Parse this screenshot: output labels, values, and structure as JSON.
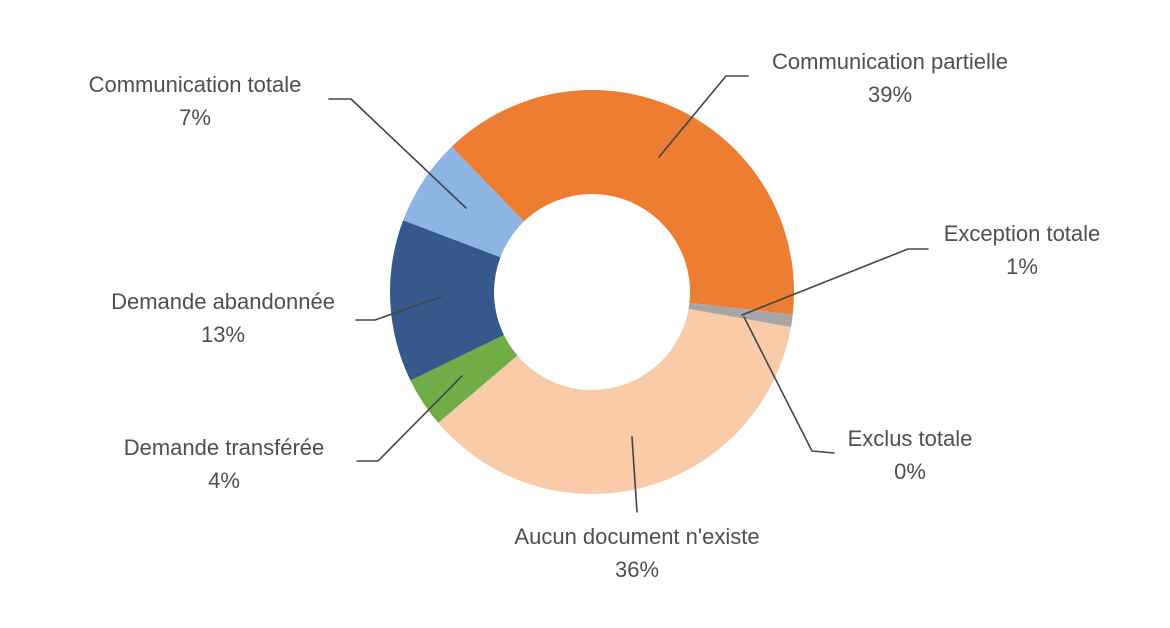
{
  "chart_data": {
    "type": "pie",
    "subtype": "donut",
    "title": "",
    "legend_position": "none",
    "labels_style": "outside category name and percentage with leader lines",
    "start_angle_deg": -44,
    "inner_radius_ratio": 0.485,
    "background_color": "#FFFFFF",
    "label_color": "#4F4F4F",
    "leader_line_color": "#454545",
    "slices": [
      {
        "label": "Communication partielle",
        "value_pct": 39,
        "pct_label": "39%",
        "color": "#ED7D31"
      },
      {
        "label": "Exception totale",
        "value_pct": 1,
        "pct_label": "1%",
        "color": "#A6A6A6"
      },
      {
        "label": "Exclus totale",
        "value_pct": 0,
        "pct_label": "0%",
        "color": "#C9C9C9"
      },
      {
        "label": "Aucun document n'existe",
        "value_pct": 36,
        "pct_label": "36%",
        "color": "#F9CBA8"
      },
      {
        "label": "Demande transférée",
        "value_pct": 4,
        "pct_label": "4%",
        "color": "#70AD47"
      },
      {
        "label": "Demande abandonnée",
        "value_pct": 13,
        "pct_label": "13%",
        "color": "#36598B"
      },
      {
        "label": "Communication totale",
        "value_pct": 7,
        "pct_label": "7%",
        "color": "#8DB4E2"
      }
    ]
  }
}
